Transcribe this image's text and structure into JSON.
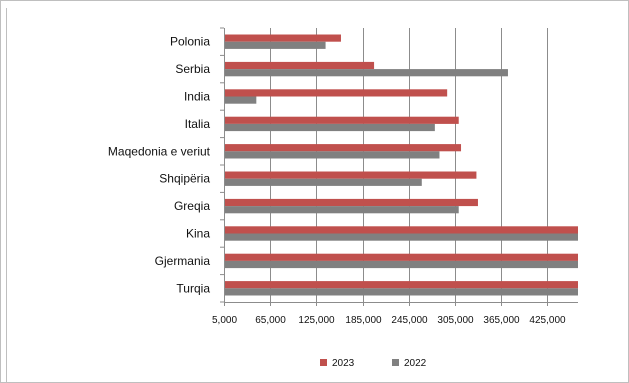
{
  "chart_data": {
    "type": "bar",
    "orientation": "horizontal",
    "categories": [
      "Polonia",
      "Serbia",
      "India",
      "Italia",
      "Maqedonia e veriut",
      "Shqipëria",
      "Greqia",
      "Kina",
      "Gjermania",
      "Turqia"
    ],
    "series": [
      {
        "name": "2023",
        "color": "#c0504d",
        "values": [
          157000,
          200000,
          295000,
          310000,
          313000,
          333000,
          335000,
          465000,
          465000,
          465000
        ]
      },
      {
        "name": "2022",
        "color": "#808080",
        "values": [
          137000,
          374000,
          47000,
          279000,
          285000,
          262000,
          310000,
          465000,
          465000,
          465000
        ]
      }
    ],
    "xlim": [
      5000,
      465000
    ],
    "xticks": [
      5000,
      65000,
      125000,
      185000,
      245000,
      305000,
      365000,
      425000
    ],
    "xtick_labels": [
      "5,000",
      "65,000",
      "125,000",
      "185,000",
      "245,000",
      "305,000",
      "365,000",
      "425,000"
    ],
    "grid": true,
    "legend_placement": "bottom"
  }
}
